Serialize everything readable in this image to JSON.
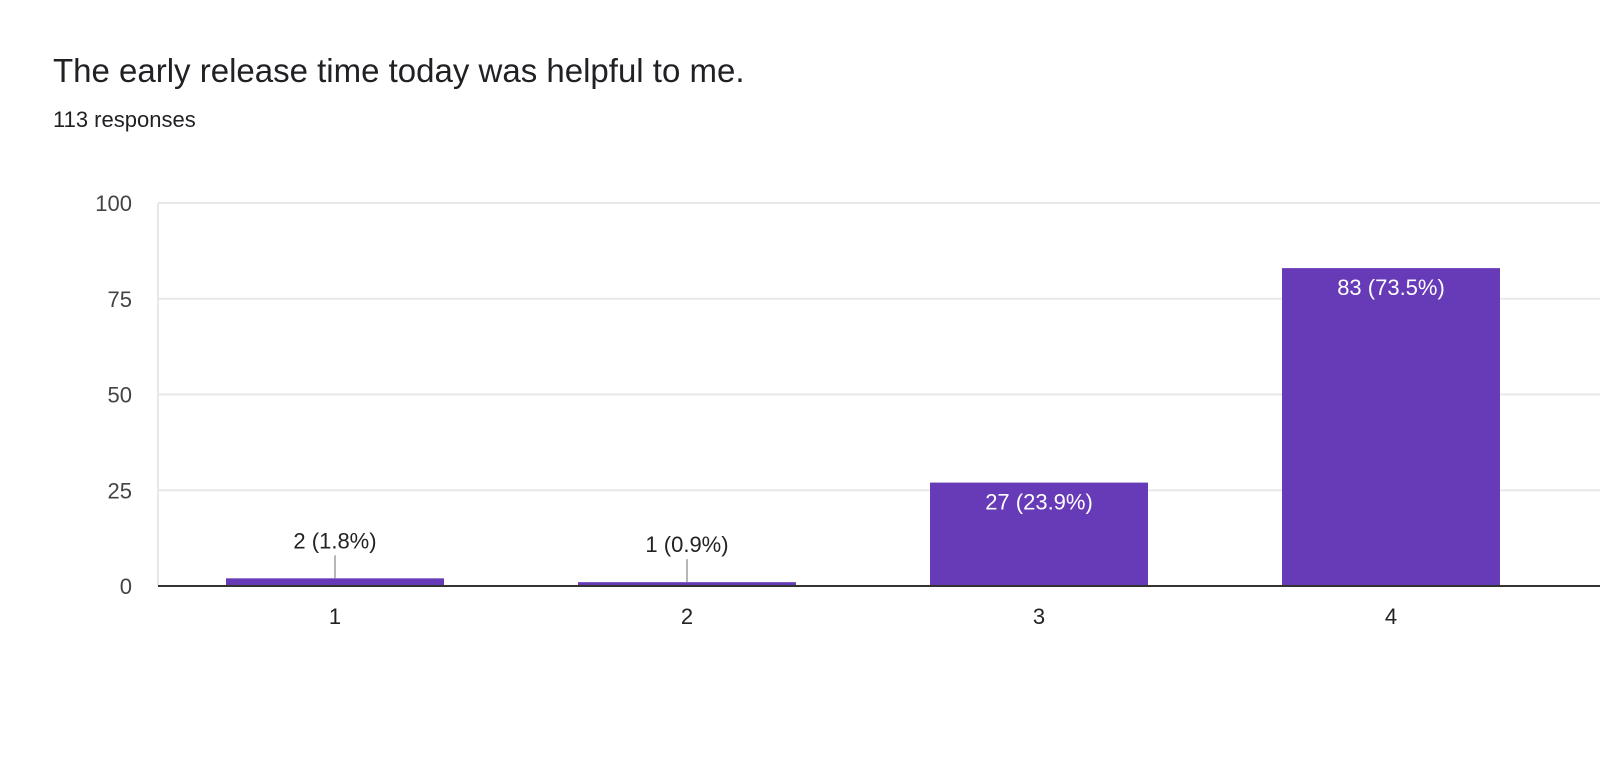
{
  "header": {
    "title": "The early release time today was helpful to me.",
    "responses": "113 responses"
  },
  "colors": {
    "bar": "#673ab7",
    "grid": "#e8e8e8",
    "baseline": "#333333",
    "leader": "#9e9e9e"
  },
  "chart_data": {
    "type": "bar",
    "title": "The early release time today was helpful to me.",
    "subtitle": "113 responses",
    "categories": [
      "1",
      "2",
      "3",
      "4"
    ],
    "values": [
      2,
      1,
      27,
      83
    ],
    "data_labels": [
      "2 (1.8%)",
      "1 (0.9%)",
      "27 (23.9%)",
      "83 (73.5%)"
    ],
    "ylim": [
      0,
      100
    ],
    "yticks": [
      0,
      25,
      50,
      75,
      100
    ],
    "xlabel": "",
    "ylabel": "",
    "grid": true,
    "legend": "none"
  }
}
